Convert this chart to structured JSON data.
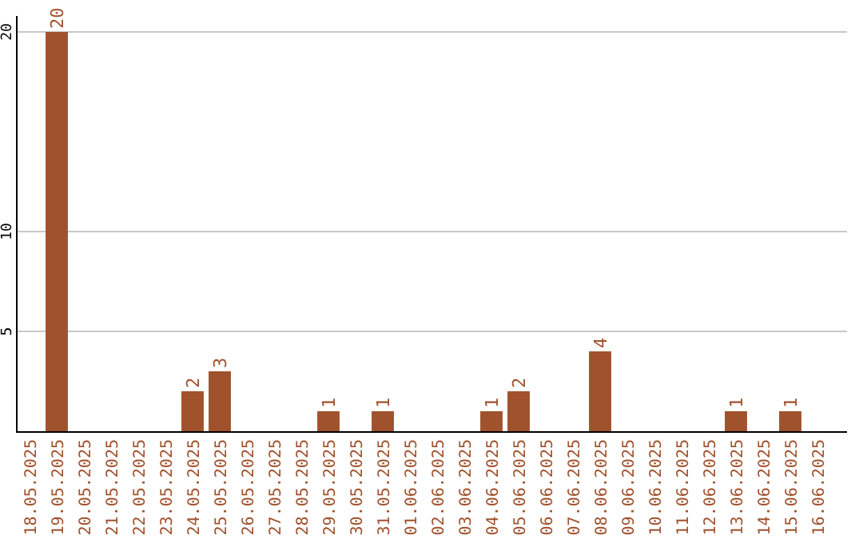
{
  "chart_data": {
    "type": "bar",
    "categories": [
      "18.05.2025",
      "19.05.2025",
      "20.05.2025",
      "21.05.2025",
      "22.05.2025",
      "23.05.2025",
      "24.05.2025",
      "25.05.2025",
      "26.05.2025",
      "27.05.2025",
      "28.05.2025",
      "29.05.2025",
      "30.05.2025",
      "31.05.2025",
      "01.06.2025",
      "02.06.2025",
      "03.06.2025",
      "04.06.2025",
      "05.06.2025",
      "06.06.2025",
      "07.06.2025",
      "08.06.2025",
      "09.06.2025",
      "10.06.2025",
      "11.06.2025",
      "12.06.2025",
      "13.06.2025",
      "14.06.2025",
      "15.06.2025",
      "16.06.2025"
    ],
    "values": [
      0,
      20,
      0,
      0,
      0,
      0,
      2,
      3,
      0,
      0,
      0,
      1,
      0,
      1,
      0,
      0,
      0,
      1,
      2,
      0,
      0,
      4,
      0,
      0,
      0,
      0,
      1,
      0,
      1,
      0
    ],
    "value_labels": [
      null,
      "20",
      null,
      null,
      null,
      null,
      "2",
      "3",
      null,
      null,
      null,
      "1",
      null,
      "1",
      null,
      null,
      null,
      "1",
      "2",
      null,
      null,
      "4",
      null,
      null,
      null,
      null,
      "1",
      null,
      "1",
      null
    ],
    "color": "#a0522d",
    "ylim": [
      0,
      20.8
    ],
    "yticks": [
      5,
      10,
      20
    ],
    "grid": "y"
  }
}
